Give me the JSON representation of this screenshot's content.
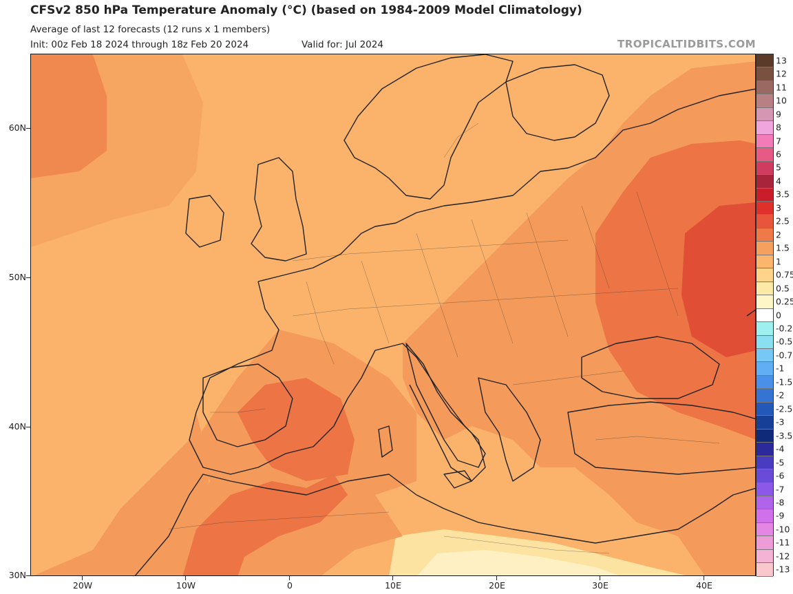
{
  "header": {
    "title": "CFSv2 850 hPa Temperature Anomaly (°C) (based on 1984-2009 Model Climatology)",
    "subtitle": "Average of last 12 forecasts (12 runs x 1 members)",
    "init": "Init: 00z Feb 18 2024 through 18z Feb 20 2024",
    "valid": "Valid for: Jul 2024",
    "credit": "TROPICALTIDBITS.COM"
  },
  "map": {
    "lat_labels": [
      "60N",
      "50N",
      "40N",
      "30N"
    ],
    "lon_labels": [
      "20W",
      "10W",
      "0",
      "10E",
      "20E",
      "30E",
      "40E"
    ],
    "field_colors": {
      "anom_0_75": "#fde3a2",
      "anom_1": "#fbb36b",
      "anom_1_5": "#f49a5a",
      "anom_2": "#ec7445",
      "anom_2_5": "#e04e35",
      "land_border": "#222222"
    }
  },
  "colorbar": {
    "labels": [
      "13",
      "12",
      "11",
      "10",
      "9",
      "8",
      "7",
      "6",
      "5",
      "4",
      "3.5",
      "3",
      "2.5",
      "2",
      "1.5",
      "1",
      "0.75",
      "0.5",
      "0.25",
      "0",
      "-0.25",
      "-0.5",
      "-0.75",
      "-1",
      "-1.5",
      "-2",
      "-2.5",
      "-3",
      "-3.5",
      "-4",
      "-5",
      "-6",
      "-7",
      "-8",
      "-9",
      "-10",
      "-11",
      "-12",
      "-13"
    ],
    "colors": [
      "#5a3a28",
      "#7a5040",
      "#9a6a62",
      "#b98083",
      "#d596b4",
      "#f0a6dc",
      "#f57ab8",
      "#e85a86",
      "#cf3c60",
      "#a8243a",
      "#c91e2a",
      "#e0302c",
      "#e8553a",
      "#ef7a48",
      "#f5a05e",
      "#fbb56d",
      "#fdd48a",
      "#fde9a6",
      "#fff6c8",
      "#ffffff",
      "#9ef0ee",
      "#8ae0f0",
      "#78c8f5",
      "#62aef5",
      "#4a90e8",
      "#3674d4",
      "#2458b8",
      "#163f98",
      "#0e2a78",
      "#2c2a9a",
      "#4a3cc0",
      "#6a4ad8",
      "#8c58e8",
      "#b064ec",
      "#d070ea",
      "#e486e4",
      "#ee9cd8",
      "#f4b2d4",
      "#f8c8cc"
    ]
  }
}
